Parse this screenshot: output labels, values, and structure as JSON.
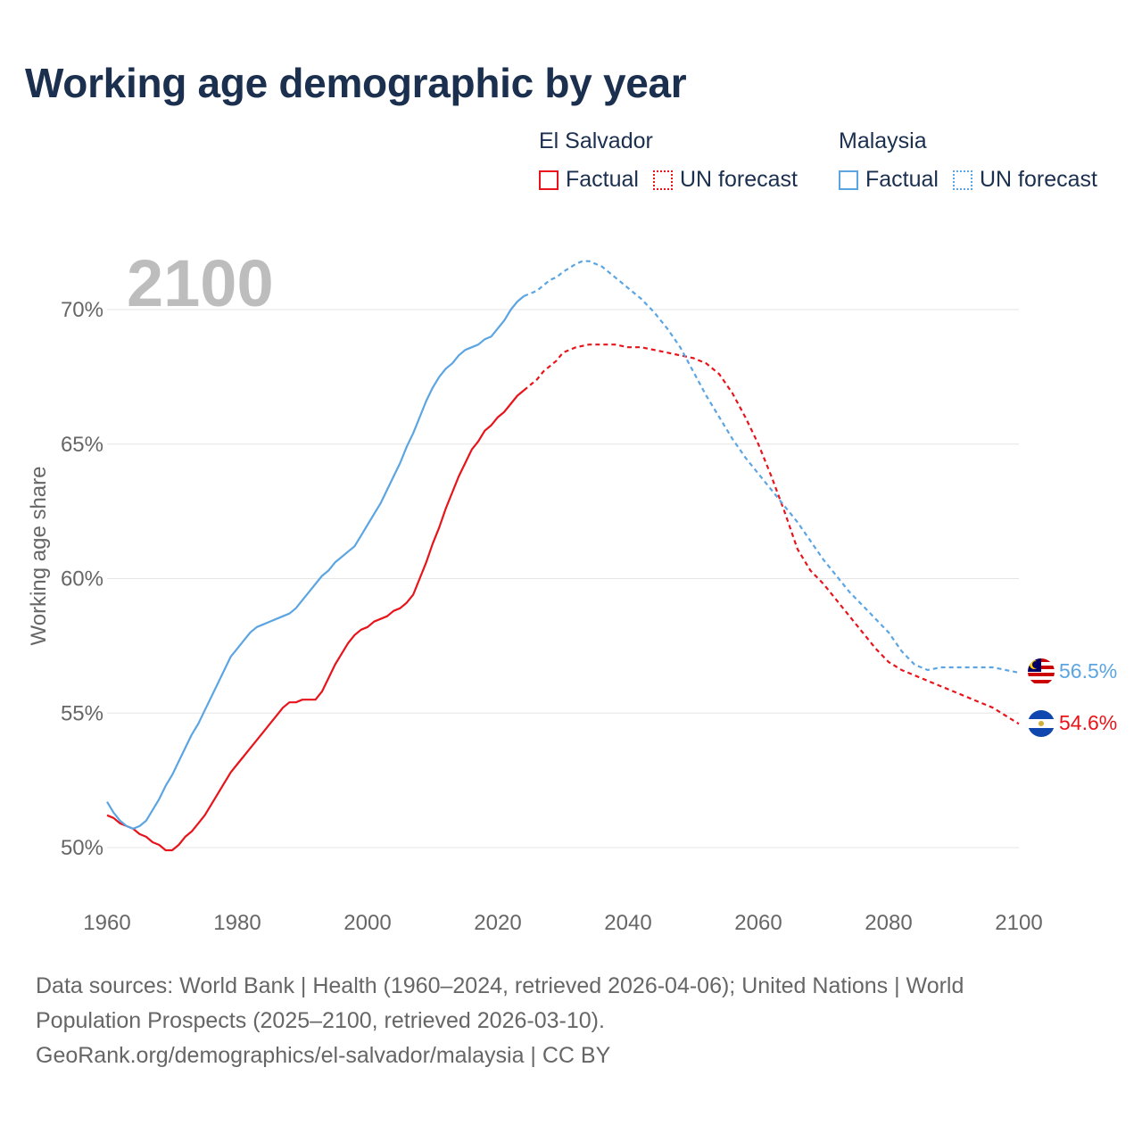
{
  "title": "Working age demographic by year",
  "legend": {
    "groups": [
      {
        "country": "El Salvador",
        "factual_label": "Factual",
        "forecast_label": "UN forecast",
        "color": "#e8141b"
      },
      {
        "country": "Malaysia",
        "factual_label": "Factual",
        "forecast_label": "UN forecast",
        "color": "#5ca5e3"
      }
    ]
  },
  "chart_data": {
    "type": "line",
    "year_watermark": "2100",
    "ylabel": "Working age share",
    "xlim": [
      1960,
      2100
    ],
    "ylim": [
      48.5,
      72
    ],
    "xticks": [
      1960,
      1980,
      2000,
      2020,
      2040,
      2060,
      2080,
      2100
    ],
    "xtick_labels": [
      "1960",
      "1980",
      "2000",
      "2020",
      "2040",
      "2060",
      "2080",
      "2100"
    ],
    "yticks": [
      50,
      55,
      60,
      65,
      70
    ],
    "ytick_labels": [
      "50%",
      "55%",
      "60%",
      "65%",
      "70%"
    ],
    "factual_end_year": 2024,
    "series": [
      {
        "name": "El Salvador",
        "color": "#e8141b",
        "end_label": "54.6%",
        "flag": "el-salvador-flag-icon",
        "points": [
          [
            1960,
            51.2
          ],
          [
            1961,
            51.1
          ],
          [
            1962,
            50.9
          ],
          [
            1963,
            50.8
          ],
          [
            1964,
            50.7
          ],
          [
            1965,
            50.5
          ],
          [
            1966,
            50.4
          ],
          [
            1967,
            50.2
          ],
          [
            1968,
            50.1
          ],
          [
            1969,
            49.9
          ],
          [
            1970,
            49.9
          ],
          [
            1971,
            50.1
          ],
          [
            1972,
            50.4
          ],
          [
            1973,
            50.6
          ],
          [
            1974,
            50.9
          ],
          [
            1975,
            51.2
          ],
          [
            1976,
            51.6
          ],
          [
            1977,
            52.0
          ],
          [
            1978,
            52.4
          ],
          [
            1979,
            52.8
          ],
          [
            1980,
            53.1
          ],
          [
            1981,
            53.4
          ],
          [
            1982,
            53.7
          ],
          [
            1983,
            54.0
          ],
          [
            1984,
            54.3
          ],
          [
            1985,
            54.6
          ],
          [
            1986,
            54.9
          ],
          [
            1987,
            55.2
          ],
          [
            1988,
            55.4
          ],
          [
            1989,
            55.4
          ],
          [
            1990,
            55.5
          ],
          [
            1991,
            55.5
          ],
          [
            1992,
            55.5
          ],
          [
            1993,
            55.8
          ],
          [
            1994,
            56.3
          ],
          [
            1995,
            56.8
          ],
          [
            1996,
            57.2
          ],
          [
            1997,
            57.6
          ],
          [
            1998,
            57.9
          ],
          [
            1999,
            58.1
          ],
          [
            2000,
            58.2
          ],
          [
            2001,
            58.4
          ],
          [
            2002,
            58.5
          ],
          [
            2003,
            58.6
          ],
          [
            2004,
            58.8
          ],
          [
            2005,
            58.9
          ],
          [
            2006,
            59.1
          ],
          [
            2007,
            59.4
          ],
          [
            2008,
            60.0
          ],
          [
            2009,
            60.6
          ],
          [
            2010,
            61.3
          ],
          [
            2011,
            61.9
          ],
          [
            2012,
            62.6
          ],
          [
            2013,
            63.2
          ],
          [
            2014,
            63.8
          ],
          [
            2015,
            64.3
          ],
          [
            2016,
            64.8
          ],
          [
            2017,
            65.1
          ],
          [
            2018,
            65.5
          ],
          [
            2019,
            65.7
          ],
          [
            2020,
            66.0
          ],
          [
            2021,
            66.2
          ],
          [
            2022,
            66.5
          ],
          [
            2023,
            66.8
          ],
          [
            2024,
            67.0
          ],
          [
            2025,
            67.2
          ],
          [
            2026,
            67.4
          ],
          [
            2027,
            67.7
          ],
          [
            2028,
            67.9
          ],
          [
            2029,
            68.1
          ],
          [
            2030,
            68.4
          ],
          [
            2032,
            68.6
          ],
          [
            2034,
            68.7
          ],
          [
            2036,
            68.7
          ],
          [
            2038,
            68.7
          ],
          [
            2040,
            68.6
          ],
          [
            2042,
            68.6
          ],
          [
            2044,
            68.5
          ],
          [
            2046,
            68.4
          ],
          [
            2048,
            68.3
          ],
          [
            2050,
            68.2
          ],
          [
            2052,
            68.0
          ],
          [
            2054,
            67.6
          ],
          [
            2056,
            66.9
          ],
          [
            2058,
            66.0
          ],
          [
            2060,
            65.0
          ],
          [
            2062,
            63.8
          ],
          [
            2064,
            62.5
          ],
          [
            2066,
            61.1
          ],
          [
            2068,
            60.3
          ],
          [
            2070,
            59.8
          ],
          [
            2072,
            59.2
          ],
          [
            2074,
            58.6
          ],
          [
            2076,
            58.0
          ],
          [
            2078,
            57.4
          ],
          [
            2080,
            56.9
          ],
          [
            2082,
            56.6
          ],
          [
            2084,
            56.4
          ],
          [
            2086,
            56.2
          ],
          [
            2088,
            56.0
          ],
          [
            2090,
            55.8
          ],
          [
            2092,
            55.6
          ],
          [
            2094,
            55.4
          ],
          [
            2096,
            55.2
          ],
          [
            2098,
            54.9
          ],
          [
            2100,
            54.6
          ]
        ]
      },
      {
        "name": "Malaysia",
        "color": "#5ca5e3",
        "end_label": "56.5%",
        "flag": "malaysia-flag-icon",
        "points": [
          [
            1960,
            51.7
          ],
          [
            1961,
            51.3
          ],
          [
            1962,
            51.0
          ],
          [
            1963,
            50.8
          ],
          [
            1964,
            50.7
          ],
          [
            1965,
            50.8
          ],
          [
            1966,
            51.0
          ],
          [
            1967,
            51.4
          ],
          [
            1968,
            51.8
          ],
          [
            1969,
            52.3
          ],
          [
            1970,
            52.7
          ],
          [
            1971,
            53.2
          ],
          [
            1972,
            53.7
          ],
          [
            1973,
            54.2
          ],
          [
            1974,
            54.6
          ],
          [
            1975,
            55.1
          ],
          [
            1976,
            55.6
          ],
          [
            1977,
            56.1
          ],
          [
            1978,
            56.6
          ],
          [
            1979,
            57.1
          ],
          [
            1980,
            57.4
          ],
          [
            1981,
            57.7
          ],
          [
            1982,
            58.0
          ],
          [
            1983,
            58.2
          ],
          [
            1984,
            58.3
          ],
          [
            1985,
            58.4
          ],
          [
            1986,
            58.5
          ],
          [
            1987,
            58.6
          ],
          [
            1988,
            58.7
          ],
          [
            1989,
            58.9
          ],
          [
            1990,
            59.2
          ],
          [
            1991,
            59.5
          ],
          [
            1992,
            59.8
          ],
          [
            1993,
            60.1
          ],
          [
            1994,
            60.3
          ],
          [
            1995,
            60.6
          ],
          [
            1996,
            60.8
          ],
          [
            1997,
            61.0
          ],
          [
            1998,
            61.2
          ],
          [
            1999,
            61.6
          ],
          [
            2000,
            62.0
          ],
          [
            2001,
            62.4
          ],
          [
            2002,
            62.8
          ],
          [
            2003,
            63.3
          ],
          [
            2004,
            63.8
          ],
          [
            2005,
            64.3
          ],
          [
            2006,
            64.9
          ],
          [
            2007,
            65.4
          ],
          [
            2008,
            66.0
          ],
          [
            2009,
            66.6
          ],
          [
            2010,
            67.1
          ],
          [
            2011,
            67.5
          ],
          [
            2012,
            67.8
          ],
          [
            2013,
            68.0
          ],
          [
            2014,
            68.3
          ],
          [
            2015,
            68.5
          ],
          [
            2016,
            68.6
          ],
          [
            2017,
            68.7
          ],
          [
            2018,
            68.9
          ],
          [
            2019,
            69.0
          ],
          [
            2020,
            69.3
          ],
          [
            2021,
            69.6
          ],
          [
            2022,
            70.0
          ],
          [
            2023,
            70.3
          ],
          [
            2024,
            70.5
          ],
          [
            2025,
            70.6
          ],
          [
            2026,
            70.7
          ],
          [
            2027,
            70.9
          ],
          [
            2028,
            71.1
          ],
          [
            2029,
            71.2
          ],
          [
            2030,
            71.4
          ],
          [
            2032,
            71.7
          ],
          [
            2033,
            71.8
          ],
          [
            2034,
            71.8
          ],
          [
            2036,
            71.6
          ],
          [
            2038,
            71.2
          ],
          [
            2040,
            70.8
          ],
          [
            2042,
            70.4
          ],
          [
            2044,
            69.9
          ],
          [
            2046,
            69.3
          ],
          [
            2048,
            68.6
          ],
          [
            2050,
            67.7
          ],
          [
            2052,
            66.8
          ],
          [
            2054,
            66.0
          ],
          [
            2056,
            65.2
          ],
          [
            2058,
            64.5
          ],
          [
            2060,
            63.9
          ],
          [
            2062,
            63.3
          ],
          [
            2064,
            62.7
          ],
          [
            2066,
            62.1
          ],
          [
            2068,
            61.4
          ],
          [
            2070,
            60.7
          ],
          [
            2072,
            60.1
          ],
          [
            2074,
            59.5
          ],
          [
            2076,
            59.0
          ],
          [
            2078,
            58.5
          ],
          [
            2080,
            58.0
          ],
          [
            2082,
            57.3
          ],
          [
            2084,
            56.8
          ],
          [
            2086,
            56.6
          ],
          [
            2088,
            56.7
          ],
          [
            2090,
            56.7
          ],
          [
            2092,
            56.7
          ],
          [
            2094,
            56.7
          ],
          [
            2096,
            56.7
          ],
          [
            2098,
            56.6
          ],
          [
            2100,
            56.5
          ]
        ]
      }
    ]
  },
  "footer": {
    "line1": "Data sources: World Bank | Health (1960–2024, retrieved 2026-04-06); United Nations | World",
    "line2": "Population Prospects (2025–2100, retrieved 2026-03-10).",
    "line3": "GeoRank.org/demographics/el-salvador/malaysia | CC BY"
  }
}
